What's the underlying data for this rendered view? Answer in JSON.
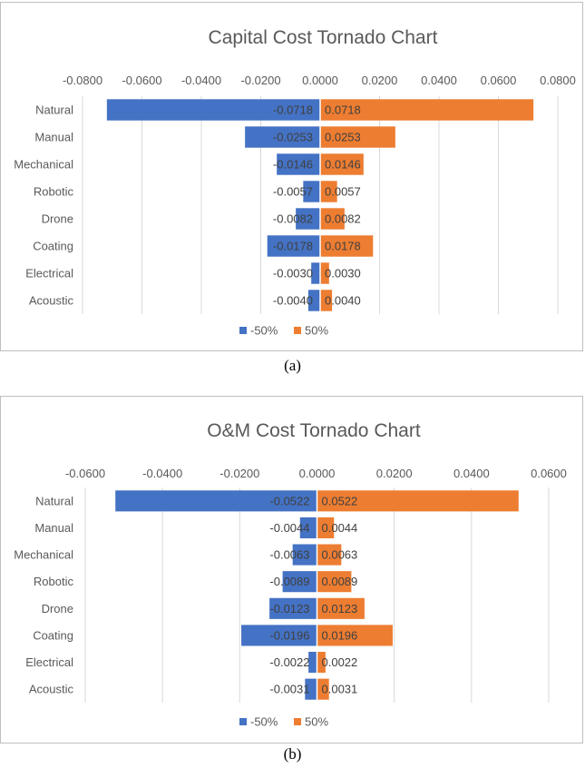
{
  "chart_data": [
    {
      "type": "bar",
      "orientation": "horizontal-tornado",
      "title": "Capital Cost Tornado Chart",
      "categories": [
        "Natural",
        "Manual",
        "Mechanical",
        "Robotic",
        "Drone",
        "Coating",
        "Electrical",
        "Acoustic"
      ],
      "series": [
        {
          "name": "-50%",
          "values": [
            -0.0718,
            -0.0253,
            -0.0146,
            -0.0057,
            -0.0082,
            -0.0178,
            -0.003,
            -0.004
          ],
          "labels": [
            "-0.0718",
            "-0.0253",
            "-0.0146",
            "-0.0057",
            "-0.0082",
            "-0.0178",
            "-0.0030",
            "-0.0040"
          ]
        },
        {
          "name": "50%",
          "values": [
            0.0718,
            0.0253,
            0.0146,
            0.0057,
            0.0082,
            0.0178,
            0.003,
            0.004
          ],
          "labels": [
            "0.0718",
            "0.0253",
            "0.0146",
            "0.0057",
            "0.0082",
            "0.0178",
            "0.0030",
            "0.0040"
          ]
        }
      ],
      "xlim": [
        -0.08,
        0.08
      ],
      "ticks": [
        -0.08,
        -0.06,
        -0.04,
        -0.02,
        0,
        0.02,
        0.04,
        0.06,
        0.08
      ],
      "tick_labels": [
        "-0.0800",
        "-0.0600",
        "-0.0400",
        "-0.0200",
        "0.0000",
        "0.0200",
        "0.0400",
        "0.0600",
        "0.0800"
      ],
      "axis_position": "top",
      "grid": true,
      "legend": "bottom",
      "caption": "(a)"
    },
    {
      "type": "bar",
      "orientation": "horizontal-tornado",
      "title": "O&M Cost Tornado Chart",
      "categories": [
        "Natural",
        "Manual",
        "Mechanical",
        "Robotic",
        "Drone",
        "Coating",
        "Electrical",
        "Acoustic"
      ],
      "series": [
        {
          "name": "-50%",
          "values": [
            -0.0522,
            -0.0044,
            -0.0063,
            -0.0089,
            -0.0123,
            -0.0196,
            -0.0022,
            -0.0031
          ],
          "labels": [
            "-0.0522",
            "-0.0044",
            "-0.0063",
            "-0.0089",
            "-0.0123",
            "-0.0196",
            "-0.0022",
            "-0.0031"
          ]
        },
        {
          "name": "50%",
          "values": [
            0.0522,
            0.0044,
            0.0063,
            0.0089,
            0.0123,
            0.0196,
            0.0022,
            0.0031
          ],
          "labels": [
            "0.0522",
            "0.0044",
            "0.0063",
            "0.0089",
            "0.0123",
            "0.0196",
            "0.0022",
            "0.0031"
          ]
        }
      ],
      "xlim": [
        -0.06,
        0.06
      ],
      "ticks": [
        -0.06,
        -0.04,
        -0.02,
        0,
        0.02,
        0.04,
        0.06
      ],
      "tick_labels": [
        "-0.0600",
        "-0.0400",
        "-0.0200",
        "0.0000",
        "0.0200",
        "0.0400",
        "0.0600"
      ],
      "axis_position": "top",
      "grid": true,
      "legend": "bottom",
      "caption": "(b)"
    }
  ],
  "colors": {
    "negative": "#4472C4",
    "positive": "#ED7D31",
    "grid": "#d9d9d9",
    "text": "#595959"
  }
}
